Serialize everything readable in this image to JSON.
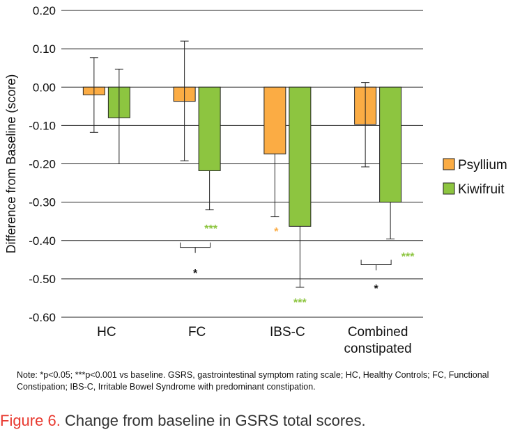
{
  "chart_data": {
    "type": "bar",
    "ylabel": "Difference from Baseline (score)",
    "ylim": [
      -0.6,
      0.2
    ],
    "yticks": [
      0.2,
      0.1,
      0.0,
      -0.1,
      -0.2,
      -0.3,
      -0.4,
      -0.5,
      -0.6
    ],
    "ytick_labels": [
      "0.20",
      "0.10",
      "0.00",
      "-0.10",
      "-0.20",
      "-0.30",
      "-0.40",
      "-0.50",
      "-0.60"
    ],
    "grid": true,
    "legend_position": "right",
    "categories": [
      {
        "line1": "HC",
        "line2": ""
      },
      {
        "line1": "FC",
        "line2": ""
      },
      {
        "line1": "IBS-C",
        "line2": ""
      },
      {
        "line1": "Combined",
        "line2": "constipated"
      }
    ],
    "series": [
      {
        "name": "Psyllium",
        "color": "#fbac44",
        "values": [
          -0.02,
          -0.037,
          -0.174,
          -0.097
        ],
        "err_upper": [
          0.077,
          0.12,
          -0.174,
          0.012
        ],
        "err_lower": [
          -0.118,
          -0.192,
          -0.338,
          -0.208
        ]
      },
      {
        "name": "Kiwifruit",
        "color": "#8dc540",
        "values": [
          -0.08,
          -0.218,
          -0.363,
          -0.3
        ],
        "err_upper": [
          0.047,
          -0.218,
          -0.363,
          -0.3
        ],
        "err_lower": [
          -0.2,
          -0.32,
          -0.522,
          -0.396
        ]
      }
    ],
    "annotations": [
      {
        "text": "***",
        "color": "#8dc540",
        "series": "Kiwifruit",
        "category": "FC",
        "y": -0.368
      },
      {
        "text": "*",
        "color": "#fbac44",
        "series": "Psyllium",
        "category": "IBS-C",
        "y": -0.375
      },
      {
        "text": "***",
        "color": "#8dc540",
        "series": "Kiwifruit",
        "category": "IBS-C",
        "y": -0.56
      },
      {
        "text": "***",
        "color": "#8dc540",
        "series": "Kiwifruit",
        "category": "Combined constipated",
        "y": -0.44
      }
    ],
    "brackets": [
      {
        "category": "FC",
        "y": -0.418,
        "star": "*",
        "star_y": -0.475
      },
      {
        "category": "Combined constipated",
        "y": -0.463,
        "star": "*",
        "star_y": -0.515
      }
    ]
  },
  "note": "Note: *p<0.05; ***p<0.001 vs baseline. GSRS, gastrointestinal symptom rating scale; HC, Healthy Controls; FC, Functional Constipation; IBS-C, Irritable Bowel Syndrome with predominant constipation.",
  "caption": {
    "label": "Figure 6.",
    "text": " Change from baseline in GSRS total scores."
  }
}
